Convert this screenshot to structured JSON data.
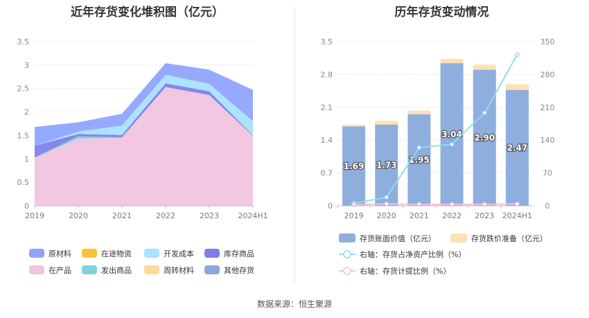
{
  "left": {
    "title": "近年存货变化堆积图（亿元）",
    "chart_data": {
      "type": "area",
      "stacked": true,
      "categories": [
        "2019",
        "2020",
        "2021",
        "2022",
        "2023",
        "2024H1"
      ],
      "yticks": [
        "0",
        "0.5",
        "1",
        "1.5",
        "2",
        "2.5",
        "3",
        "3.5"
      ],
      "ylim": [
        0,
        3.5
      ],
      "grid": true,
      "legend_position": "bottom",
      "series": [
        {
          "name": "原材料",
          "color": "#8fa4ff",
          "values": [
            0.4,
            0.2,
            0.25,
            0.25,
            0.3,
            0.67
          ]
        },
        {
          "name": "在途物资",
          "color": "#f8c23a",
          "values": [
            0,
            0,
            0,
            0,
            0,
            0
          ]
        },
        {
          "name": "开发成本",
          "color": "#a8e2ff",
          "values": [
            0,
            0.05,
            0.2,
            0.18,
            0.16,
            0.3
          ]
        },
        {
          "name": "库存商品",
          "color": "#7f7fea",
          "values": [
            0.25,
            0.05,
            0.05,
            0.08,
            0.08,
            0.01
          ]
        },
        {
          "name": "在产品",
          "color": "#f0c4e0",
          "values": [
            1.02,
            1.43,
            1.45,
            2.53,
            2.36,
            1.49
          ]
        },
        {
          "name": "发出商品",
          "color": "#7fd4d8",
          "values": [
            0.01,
            0.05,
            0.01,
            0,
            0,
            0
          ]
        },
        {
          "name": "周转材料",
          "color": "#ffd89a",
          "values": [
            0,
            0,
            0,
            0,
            0,
            0
          ]
        },
        {
          "name": "其他存货",
          "color": "#8ba8dc",
          "values": [
            0,
            0,
            0,
            0,
            0,
            0
          ]
        }
      ]
    }
  },
  "right": {
    "title": "历年存货变动情况",
    "chart_data": {
      "type": "bar",
      "categories": [
        "2019",
        "2020",
        "2021",
        "2022",
        "2023",
        "2024H1"
      ],
      "y_left_ticks": [
        "0",
        "0.7",
        "1.4",
        "2.1",
        "2.8",
        "3.5"
      ],
      "y_right_ticks": [
        "0",
        "70",
        "140",
        "210",
        "280",
        "350"
      ],
      "ylim_left": [
        0,
        3.5
      ],
      "ylim_right": [
        0,
        350
      ],
      "grid": true,
      "legend_position": "bottom",
      "bars": [
        {
          "name": "存货账面价值（亿元）",
          "color": "#8eaedd",
          "values": [
            1.69,
            1.73,
            1.95,
            3.04,
            2.9,
            2.47
          ],
          "labels": [
            "1.69",
            "1.73",
            "1.95",
            "3.04",
            "2.90",
            "2.47"
          ]
        },
        {
          "name": "存货跌价准备（亿元）",
          "color": "#fde1b4",
          "values": [
            0.04,
            0.08,
            0.08,
            0.09,
            0.11,
            0.12
          ]
        }
      ],
      "lines": [
        {
          "name": "右轴：存货占净资产比例（%）",
          "color": "#8fdde6",
          "axis": "right",
          "values": [
            5,
            18,
            124,
            131,
            198,
            322
          ]
        },
        {
          "name": "右轴：存货计提比例（%）",
          "color": "#f2c2dc",
          "axis": "right",
          "values": [
            2,
            4,
            3,
            3,
            3,
            4
          ]
        }
      ]
    }
  },
  "source": "数据来源：恒生聚源"
}
